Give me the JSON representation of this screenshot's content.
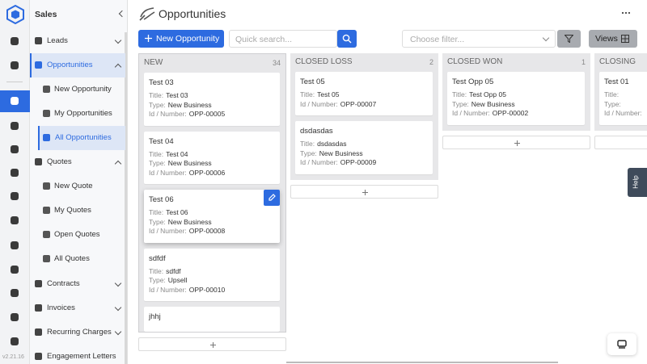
{
  "sidebar": {
    "title": "Sales",
    "menu": [
      {
        "label": "Leads"
      },
      {
        "label": "Opportunities",
        "items": [
          "New Opportunity",
          "My Opportunities",
          "All Opportunities"
        ]
      },
      {
        "label": "Quotes",
        "items": [
          "New Quote",
          "My Quotes",
          "Open Quotes",
          "All Quotes"
        ]
      },
      {
        "label": "Contracts"
      },
      {
        "label": "Invoices"
      },
      {
        "label": "Recurring Charges"
      },
      {
        "label": "Engagement Letters"
      }
    ]
  },
  "version": "v2.21.16",
  "header": {
    "title": "Opportunities"
  },
  "toolbar": {
    "new_button": "New Opportunity",
    "search_placeholder": "Quick search...",
    "filter_placeholder": "Choose filter...",
    "views": "Views"
  },
  "board": {
    "columns": [
      {
        "name": "NEW",
        "count": 34,
        "cards": [
          {
            "title": "Test 03",
            "fields": [
              {
                "label": "Title:",
                "value": "Test 03"
              },
              {
                "label": "Type:",
                "value": "New Business"
              },
              {
                "label": "Id / Number:",
                "value": "OPP-00005"
              }
            ]
          },
          {
            "title": "Test 04",
            "fields": [
              {
                "label": "Title:",
                "value": "Test 04"
              },
              {
                "label": "Type:",
                "value": "New Business"
              },
              {
                "label": "Id / Number:",
                "value": "OPP-00006"
              }
            ]
          },
          {
            "title": "Test 06",
            "fields": [
              {
                "label": "Title:",
                "value": "Test 06"
              },
              {
                "label": "Type:",
                "value": "New Business"
              },
              {
                "label": "Id / Number:",
                "value": "OPP-00008"
              }
            ]
          },
          {
            "title": "sdfdf",
            "fields": [
              {
                "label": "Title:",
                "value": "sdfdf"
              },
              {
                "label": "Type:",
                "value": "Upsell"
              },
              {
                "label": "Id / Number:",
                "value": "OPP-00010"
              }
            ]
          },
          {
            "title": "jhhj"
          }
        ]
      },
      {
        "name": "CLOSED LOSS",
        "count": 2,
        "cards": [
          {
            "title": "Test 05",
            "fields": [
              {
                "label": "Title:",
                "value": "Test 05"
              },
              {
                "label": "Id / Number:",
                "value": "OPP-00007"
              }
            ]
          },
          {
            "title": "dsdasdas",
            "fields": [
              {
                "label": "Title:",
                "value": "dsdasdas"
              },
              {
                "label": "Type:",
                "value": "New Business"
              },
              {
                "label": "Id / Number:",
                "value": "OPP-00009"
              }
            ]
          }
        ]
      },
      {
        "name": "CLOSED WON",
        "count": 1,
        "cards": [
          {
            "title": "Test Opp 05",
            "fields": [
              {
                "label": "Title:",
                "value": "Test Opp 05"
              },
              {
                "label": "Type:",
                "value": "New Business"
              },
              {
                "label": "Id / Number:",
                "value": "OPP-00002"
              }
            ]
          }
        ]
      },
      {
        "name": "CLOSING",
        "cards": [
          {
            "title": "Test 01",
            "fields": [
              {
                "label": "Title:"
              },
              {
                "label": "Type:"
              },
              {
                "label": "Id / Number:"
              }
            ]
          }
        ]
      }
    ]
  },
  "help": "Help"
}
